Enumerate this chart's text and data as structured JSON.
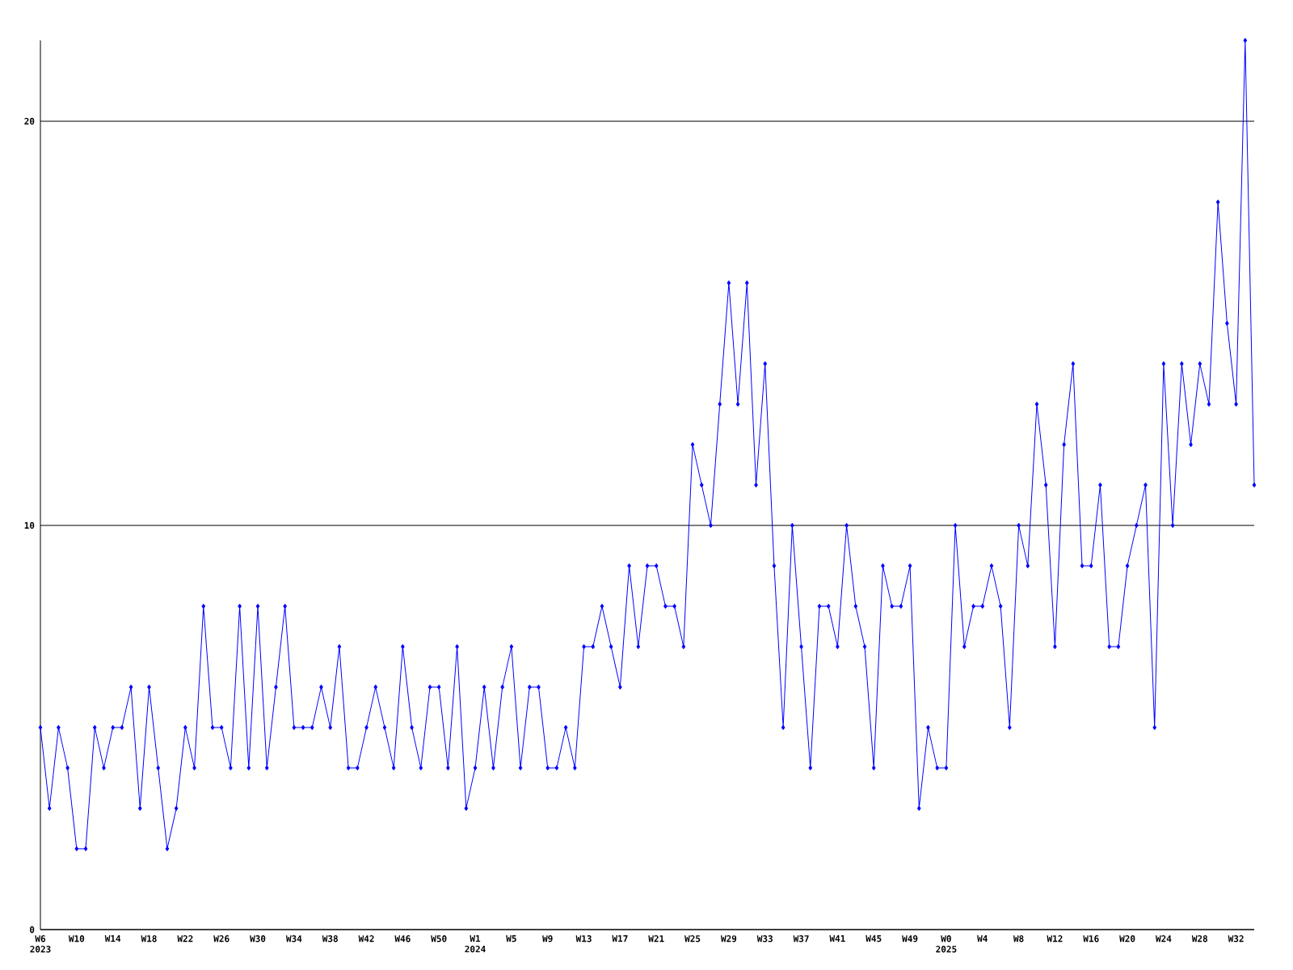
{
  "chart_data": {
    "type": "line",
    "color": "#0000ff",
    "marker": "diamond",
    "grid": "y",
    "ylim": [
      0,
      22
    ],
    "yticks": [
      0,
      10,
      20
    ],
    "categories": [
      "W6 2023",
      null,
      null,
      null,
      "W10",
      null,
      null,
      null,
      "W14",
      null,
      null,
      null,
      "W18",
      null,
      null,
      null,
      "W22",
      null,
      null,
      null,
      "W26",
      null,
      null,
      null,
      "W30",
      null,
      null,
      null,
      "W34",
      null,
      null,
      null,
      "W38",
      null,
      null,
      null,
      "W42",
      null,
      null,
      null,
      "W46",
      null,
      null,
      null,
      "W50",
      null,
      null,
      null,
      "W1 2024",
      null,
      null,
      null,
      "W5",
      null,
      null,
      null,
      "W9",
      null,
      null,
      null,
      "W13",
      null,
      null,
      null,
      "W17",
      null,
      null,
      null,
      "W21",
      null,
      null,
      null,
      "W25",
      null,
      null,
      null,
      "W29",
      null,
      null,
      null,
      "W33",
      null,
      null,
      null,
      "W37",
      null,
      null,
      null,
      "W41",
      null,
      null,
      null,
      "W45",
      null,
      null,
      null,
      "W49",
      null,
      null,
      null,
      "W0 2025",
      null,
      null,
      null,
      "W4",
      null,
      null,
      null,
      "W8",
      null,
      null,
      null,
      "W12",
      null,
      null,
      null,
      "W16",
      null,
      null,
      null,
      "W20",
      null,
      null,
      null,
      "W24",
      null,
      null,
      null,
      "W28",
      null,
      null,
      null,
      "W32",
      null,
      null
    ],
    "values": [
      5,
      3,
      5,
      4,
      2,
      2,
      5,
      4,
      5,
      5,
      6,
      3,
      6,
      4,
      2,
      3,
      5,
      4,
      8,
      5,
      5,
      4,
      8,
      4,
      8,
      4,
      6,
      8,
      5,
      5,
      5,
      6,
      5,
      7,
      4,
      4,
      5,
      6,
      5,
      4,
      7,
      5,
      4,
      6,
      6,
      4,
      7,
      3,
      4,
      6,
      4,
      6,
      7,
      4,
      6,
      6,
      4,
      4,
      5,
      4,
      7,
      7,
      8,
      7,
      6,
      9,
      7,
      9,
      9,
      8,
      8,
      7,
      12,
      11,
      10,
      13,
      16,
      13,
      16,
      11,
      14,
      9,
      5,
      10,
      7,
      4,
      8,
      8,
      7,
      10,
      8,
      7,
      4,
      9,
      8,
      8,
      9,
      3,
      5,
      4,
      4,
      10,
      7,
      8,
      8,
      9,
      8,
      5,
      10,
      9,
      13,
      11,
      7,
      12,
      14,
      9,
      9,
      11,
      7,
      7,
      9,
      10,
      11,
      5,
      14,
      10,
      14,
      12,
      14,
      13,
      18,
      15,
      13,
      22,
      11
    ]
  }
}
